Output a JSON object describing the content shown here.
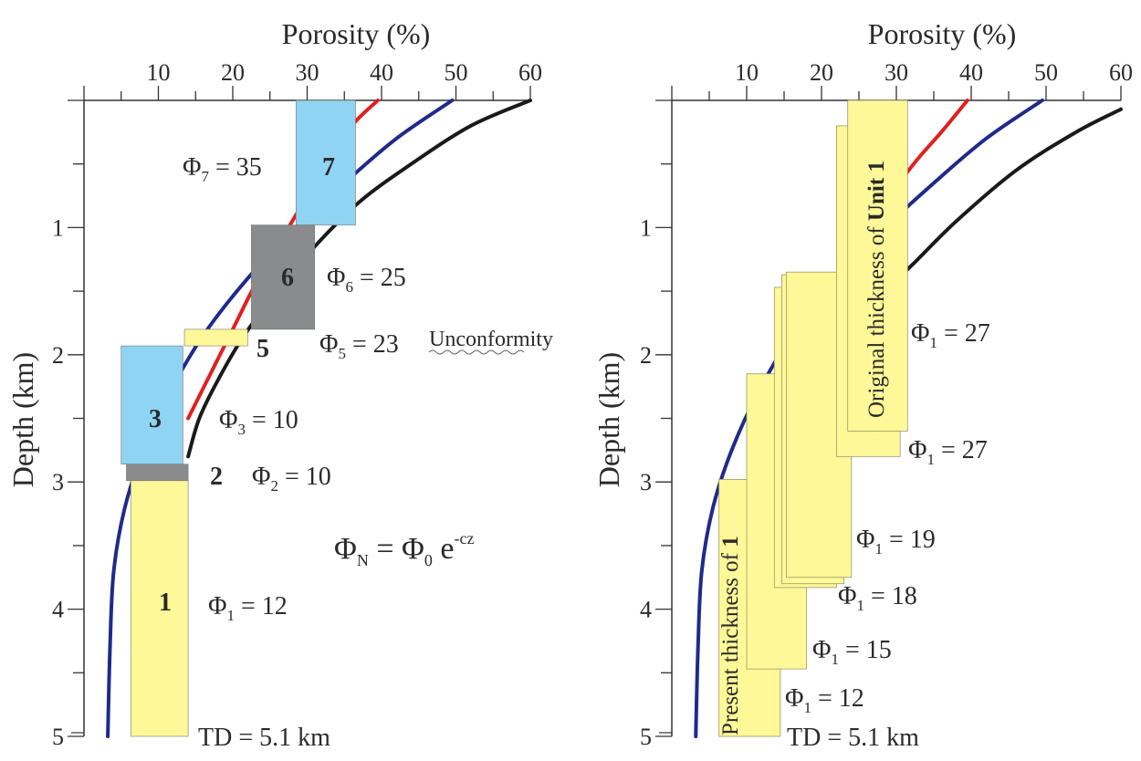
{
  "colors": {
    "line_black": "#1a1a1a",
    "line_blue": "#1f2a8a",
    "line_red": "#e02020",
    "unit_blue": "#8fd4f2",
    "unit_gray": "#8a8b8d",
    "unit_yellow": "#fef898",
    "axis": "#333333"
  },
  "chart_data": [
    {
      "type": "line",
      "panel": "left",
      "xlabel": "Porosity (%)",
      "ylabel": "Depth (km)",
      "x_ticks": [
        10,
        20,
        30,
        40,
        50,
        60
      ],
      "y_ticks": [
        1,
        2,
        3,
        4,
        5
      ],
      "xlim": [
        0,
        60
      ],
      "ylim": [
        0,
        5
      ],
      "x_axis_position": "top",
      "y_axis_inverted": true,
      "series": [
        {
          "color": "black",
          "points": [
            [
              60,
              0
            ],
            [
              52,
              0.2
            ],
            [
              44,
              0.5
            ],
            [
              37,
              0.8
            ],
            [
              31,
              1.15
            ],
            [
              26,
              1.5
            ],
            [
              21.5,
              1.85
            ],
            [
              18,
              2.2
            ],
            [
              15.5,
              2.5
            ],
            [
              14,
              2.8
            ]
          ]
        },
        {
          "color": "blue",
          "points": [
            [
              49.5,
              0
            ],
            [
              42,
              0.3
            ],
            [
              35,
              0.65
            ],
            [
              28.5,
              1.0
            ],
            [
              22,
              1.4
            ],
            [
              16,
              1.85
            ],
            [
              11.5,
              2.3
            ],
            [
              8,
              2.75
            ],
            [
              5.5,
              3.2
            ],
            [
              4,
              3.7
            ],
            [
              3.5,
              4.3
            ],
            [
              3.2,
              5.0
            ]
          ]
        },
        {
          "color": "red",
          "points": [
            [
              39.5,
              0
            ],
            [
              36,
              0.2
            ],
            [
              32,
              0.55
            ],
            [
              29,
              0.85
            ],
            [
              26,
              1.15
            ],
            [
              23,
              1.45
            ],
            [
              20,
              1.8
            ],
            [
              17,
              2.15
            ],
            [
              14,
              2.5
            ]
          ]
        }
      ],
      "units": [
        {
          "label": "7",
          "phi_sub": "7",
          "phi_value": "35",
          "porosity_range": [
            28.5,
            36.5
          ],
          "depth_range": [
            0,
            0.98
          ],
          "color": "blue"
        },
        {
          "label": "6",
          "phi_sub": "6",
          "phi_value": "25",
          "porosity_range": [
            22.5,
            31
          ],
          "depth_range": [
            0.98,
            1.8
          ],
          "color": "gray"
        },
        {
          "label": "5",
          "phi_sub": "5",
          "phi_value": "23",
          "porosity_range": [
            13.5,
            22
          ],
          "depth_range": [
            1.8,
            1.93
          ],
          "color": "yellow"
        },
        {
          "label": "3",
          "phi_sub": "3",
          "phi_value": "10",
          "porosity_range": [
            5,
            13.3
          ],
          "depth_range": [
            1.93,
            2.86
          ],
          "color": "blue"
        },
        {
          "label": "2",
          "phi_sub": "2",
          "phi_value": "10",
          "porosity_range": [
            5.7,
            14
          ],
          "depth_range": [
            2.86,
            2.99
          ],
          "color": "gray"
        },
        {
          "label": "1",
          "phi_sub": "1",
          "phi_value": "12",
          "porosity_range": [
            6.3,
            14
          ],
          "depth_range": [
            2.99,
            5.0
          ],
          "color": "yellow"
        }
      ],
      "annotations": {
        "unconformity": "Unconformity",
        "td": "TD = 5.1 km",
        "equation": {
          "lhs": "Φ",
          "lhs_sub": "N",
          "eq": " = Φ",
          "rhs_sub": "0",
          "e": " e",
          "exp": "-cz"
        }
      }
    },
    {
      "type": "line",
      "panel": "right",
      "xlabel": "Porosity (%)",
      "ylabel": "Depth (km)",
      "x_ticks": [
        10,
        20,
        30,
        40,
        50,
        60
      ],
      "y_ticks": [
        1,
        2,
        3,
        4,
        5
      ],
      "xlim": [
        0,
        60
      ],
      "ylim": [
        0,
        5
      ],
      "x_axis_position": "top",
      "y_axis_inverted": true,
      "series": [
        {
          "color": "black",
          "points": [
            [
              60,
              0.07
            ],
            [
              54,
              0.25
            ],
            [
              46,
              0.55
            ],
            [
              38,
              0.95
            ],
            [
              32,
              1.3
            ],
            [
              27.5,
              1.55
            ]
          ]
        },
        {
          "color": "blue",
          "points": [
            [
              49.5,
              0
            ],
            [
              42,
              0.3
            ],
            [
              35,
              0.65
            ],
            [
              28.5,
              1.0
            ],
            [
              22,
              1.4
            ],
            [
              16,
              1.85
            ],
            [
              11.5,
              2.3
            ],
            [
              8,
              2.75
            ],
            [
              5.5,
              3.2
            ],
            [
              4,
              3.7
            ],
            [
              3.5,
              4.3
            ],
            [
              3.2,
              5.0
            ]
          ]
        },
        {
          "color": "red",
          "points": [
            [
              39.5,
              0
            ],
            [
              36,
              0.25
            ],
            [
              33,
              0.45
            ],
            [
              31,
              0.6
            ]
          ]
        }
      ],
      "burial_stages": [
        {
          "porosity_range": [
            6.3,
            14.5
          ],
          "depth_range": [
            2.98,
            5.0
          ],
          "phi_sub": "1",
          "phi_value": "12"
        },
        {
          "porosity_range": [
            10,
            18
          ],
          "depth_range": [
            2.15,
            4.47
          ],
          "phi_sub": "1",
          "phi_value": "15"
        },
        {
          "porosity_range": [
            13.7,
            22
          ],
          "depth_range": [
            1.47,
            3.83
          ],
          "phi_sub": "1",
          "phi_value": "18"
        },
        {
          "porosity_range": [
            14.7,
            23
          ],
          "depth_range": [
            1.37,
            3.8
          ],
          "phi_sub": "1",
          "phi_value": ""
        },
        {
          "porosity_range": [
            15.3,
            24
          ],
          "depth_range": [
            1.35,
            3.75
          ],
          "phi_sub": "1",
          "phi_value": "19"
        },
        {
          "porosity_range": [
            22,
            30.5
          ],
          "depth_range": [
            0.2,
            2.8
          ],
          "phi_sub": "1",
          "phi_value": "27"
        },
        {
          "porosity_range": [
            23.5,
            31.5
          ],
          "depth_range": [
            0,
            2.6
          ],
          "phi_sub": "1",
          "phi_value": "27"
        }
      ],
      "labels": {
        "present": "Present thickness of ",
        "present_bold": "1",
        "original": "Original thickness of ",
        "original_bold": "Unit 1",
        "td": "TD = 5.1 km"
      }
    }
  ]
}
